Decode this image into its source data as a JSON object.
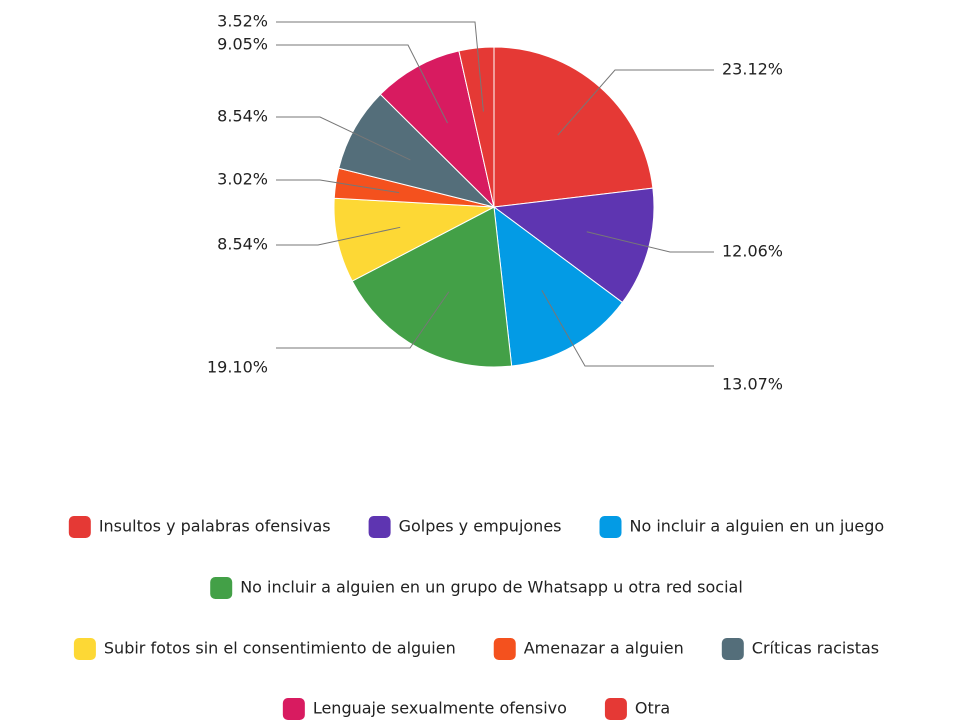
{
  "chart_data": {
    "type": "pie",
    "categories": [
      "Insultos y palabras ofensivas",
      "Golpes y empujones",
      "No incluir a alguien en un juego",
      "No incluir a alguien en un grupo de Whatsapp u otra red social",
      "Subir fotos sin el consentimiento de alguien",
      "Amenazar a alguien",
      "Críticas racistas",
      "Lenguaje sexualmente ofensivo",
      "Otra"
    ],
    "values": [
      23.12,
      12.06,
      13.07,
      19.1,
      8.54,
      3.02,
      8.54,
      9.05,
      3.52
    ],
    "value_labels": [
      "23.12%",
      "12.06%",
      "13.07%",
      "19.10%",
      "8.54%",
      "3.02%",
      "8.54%",
      "9.05%",
      "3.52%"
    ],
    "colors": [
      "#e53935",
      "#5e35b1",
      "#039be5",
      "#43a047",
      "#fdd835",
      "#f4511e",
      "#546e7a",
      "#d81b60",
      "#e53935"
    ],
    "legend": "bottom"
  }
}
